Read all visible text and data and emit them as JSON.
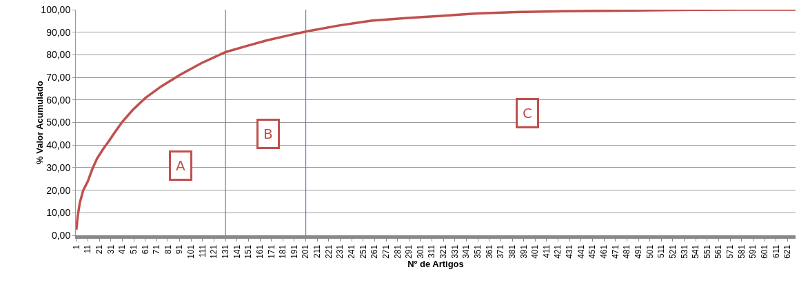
{
  "chart_data": {
    "type": "line",
    "xlabel": "Nº de Artigos",
    "ylabel": "% Valor Acumulado",
    "x": [
      1,
      2,
      4,
      7,
      11,
      15,
      19,
      24,
      29,
      35,
      41,
      50,
      61,
      75,
      91,
      110,
      131,
      150,
      167,
      185,
      201,
      230,
      258,
      290,
      317,
      350,
      389,
      425,
      462,
      500,
      540,
      580,
      628
    ],
    "series": [
      {
        "color": "#c0504d",
        "values": [
          2.5,
          8,
          14.5,
          20,
          24,
          29.5,
          34,
          38,
          41.5,
          46,
          50.3,
          55.5,
          60.8,
          66,
          71,
          76.3,
          81.2,
          84,
          86.4,
          88.5,
          90.3,
          93,
          95.1,
          96.3,
          97.2,
          98.3,
          99,
          99.3,
          99.5,
          99.7,
          99.9,
          100,
          100
        ]
      }
    ],
    "xlim": [
      0.5,
      628
    ],
    "xticks": [
      1,
      11,
      21,
      31,
      41,
      51,
      61,
      71,
      81,
      91,
      101,
      111,
      121,
      131,
      141,
      151,
      161,
      171,
      181,
      191,
      201,
      211,
      221,
      231,
      241,
      251,
      261,
      271,
      281,
      291,
      301,
      311,
      321,
      331,
      341,
      351,
      361,
      371,
      381,
      391,
      401,
      411,
      421,
      431,
      441,
      451,
      461,
      471,
      481,
      491,
      501,
      511,
      521,
      531,
      541,
      551,
      561,
      571,
      581,
      591,
      601,
      611,
      621
    ],
    "ylim": [
      0,
      100
    ],
    "yticks": [
      {
        "value": 0,
        "label": "0,00"
      },
      {
        "value": 10,
        "label": "10,00"
      },
      {
        "value": 20,
        "label": "20,00"
      },
      {
        "value": 30,
        "label": "30,00"
      },
      {
        "value": 40,
        "label": "40,00"
      },
      {
        "value": 50,
        "label": "50,00"
      },
      {
        "value": 60,
        "label": "60,00"
      },
      {
        "value": 70,
        "label": "70,00"
      },
      {
        "value": 80,
        "label": "80,00"
      },
      {
        "value": 90,
        "label": "90,00"
      },
      {
        "value": 100,
        "label": "100,00"
      }
    ],
    "ref_lines": [
      {
        "axis": "x",
        "value": 131,
        "color": "#4f81bd"
      },
      {
        "axis": "x",
        "value": 201,
        "color": "#4f81bd"
      }
    ],
    "annotations": [
      {
        "text": "A",
        "x": 92,
        "y": 31
      },
      {
        "text": "B",
        "x": 168,
        "y": 45
      },
      {
        "text": "C",
        "x": 394,
        "y": 54
      }
    ],
    "grid": "y",
    "marker": "none",
    "line_style": "solid"
  }
}
